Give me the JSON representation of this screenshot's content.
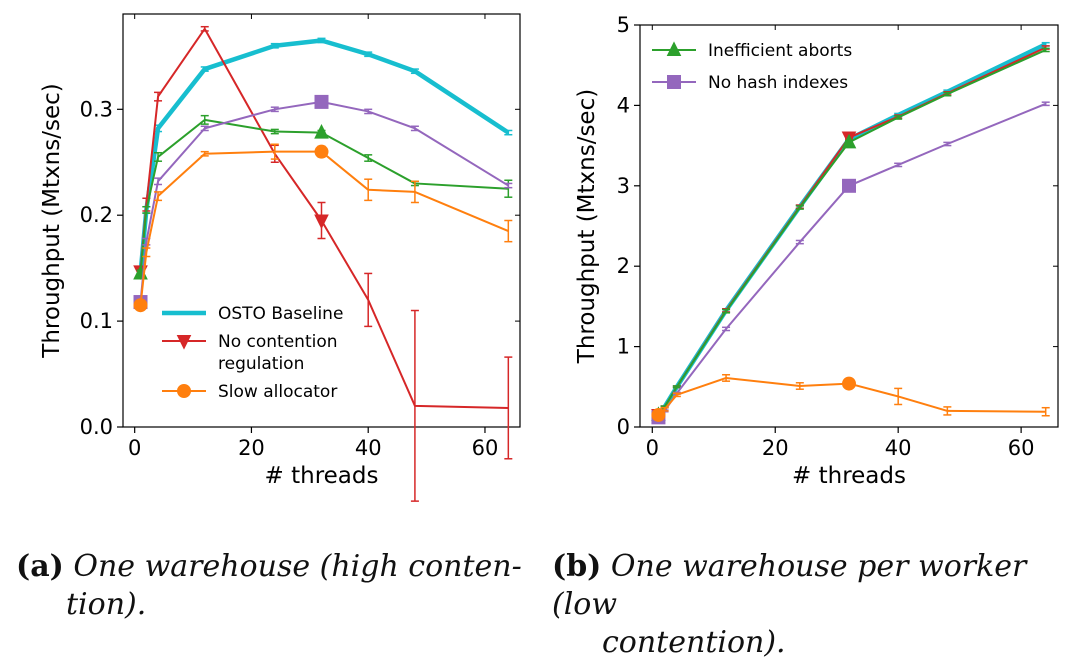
{
  "charts": [
    {
      "type": "line",
      "xlabel": "# threads",
      "ylabel": "Throughput (Mtxns/sec)",
      "xlim": [
        -2,
        66
      ],
      "ylim": [
        0,
        0.39
      ],
      "xticks": [
        "0",
        "20",
        "40",
        "60"
      ],
      "xtick_values": [
        0,
        20,
        40,
        60
      ],
      "yticks": [
        "0.0",
        "0.1",
        "0.2",
        "0.3"
      ],
      "ytick_values": [
        0,
        0.1,
        0.2,
        0.3
      ],
      "legend": [
        "OSTO Baseline",
        "No contention regulation",
        "Slow allocator"
      ],
      "legend_display": [
        [
          "OSTO Baseline"
        ],
        [
          "No contention",
          "regulation"
        ],
        [
          "Slow allocator"
        ]
      ],
      "series": [
        {
          "name": "OSTO Baseline",
          "color": "#17becf",
          "marker": "none",
          "x": [
            1,
            2,
            4,
            12,
            24,
            32,
            40,
            48,
            64
          ],
          "y": [
            0.145,
            0.205,
            0.282,
            0.338,
            0.36,
            0.365,
            0.352,
            0.336,
            0.278
          ],
          "err": [
            0.003,
            0.003,
            0.003,
            0.002,
            0.002,
            0.002,
            0.002,
            0.002,
            0.002
          ]
        },
        {
          "name": "No contention regulation",
          "color": "#d62728",
          "marker": "triangle_down",
          "x": [
            1,
            2,
            4,
            12,
            24,
            32,
            40,
            48,
            64
          ],
          "y": [
            0.147,
            0.21,
            0.312,
            0.376,
            0.258,
            0.195,
            0.12,
            0.02,
            0.018
          ],
          "err": [
            0.004,
            0.006,
            0.004,
            0.002,
            0.008,
            0.017,
            0.025,
            0.09,
            0.048
          ],
          "marker_index": [
            0,
            5
          ]
        },
        {
          "name": "Inefficient aborts",
          "color": "#2ca02c",
          "marker": "triangle_up",
          "x": [
            1,
            2,
            4,
            12,
            24,
            32,
            40,
            48,
            64
          ],
          "y": [
            0.145,
            0.205,
            0.255,
            0.29,
            0.279,
            0.278,
            0.254,
            0.23,
            0.225
          ],
          "err": [
            0.003,
            0.003,
            0.004,
            0.004,
            0.002,
            0.002,
            0.003,
            0.002,
            0.008
          ],
          "marker_index": [
            0,
            5
          ]
        },
        {
          "name": "No hash indexes",
          "color": "#9467bd",
          "marker": "square",
          "x": [
            1,
            2,
            4,
            12,
            24,
            32,
            40,
            48,
            64
          ],
          "y": [
            0.118,
            0.175,
            0.232,
            0.282,
            0.3,
            0.307,
            0.298,
            0.282,
            0.228
          ],
          "err": [
            0.003,
            0.003,
            0.003,
            0.002,
            0.002,
            0.002,
            0.002,
            0.002,
            0.002
          ],
          "marker_index": [
            0,
            5
          ]
        },
        {
          "name": "Slow allocator",
          "color": "#ff7f0e",
          "marker": "circle",
          "x": [
            1,
            2,
            4,
            12,
            24,
            32,
            40,
            48,
            64
          ],
          "y": [
            0.115,
            0.165,
            0.218,
            0.258,
            0.26,
            0.26,
            0.224,
            0.222,
            0.185
          ],
          "err": [
            0.003,
            0.004,
            0.004,
            0.002,
            0.007,
            0.005,
            0.01,
            0.01,
            0.01
          ],
          "marker_index": [
            0,
            5
          ]
        }
      ]
    },
    {
      "type": "line",
      "xlabel": "# threads",
      "ylabel": "Throughput (Mtxns/sec)",
      "xlim": [
        -2,
        66
      ],
      "ylim": [
        0,
        5
      ],
      "xticks": [
        "0",
        "20",
        "40",
        "60"
      ],
      "xtick_values": [
        0,
        20,
        40,
        60
      ],
      "yticks": [
        "0",
        "1",
        "2",
        "3",
        "4",
        "5"
      ],
      "ytick_values": [
        0,
        1,
        2,
        3,
        4,
        5
      ],
      "legend": [
        "Inefficient aborts",
        "No hash indexes"
      ],
      "legend_display": [
        [
          "Inefficient aborts"
        ],
        [
          "No hash indexes"
        ]
      ],
      "series": [
        {
          "name": "OSTO Baseline",
          "color": "#17becf",
          "marker": "none",
          "x": [
            1,
            2,
            4,
            12,
            24,
            32,
            40,
            48,
            64
          ],
          "y": [
            0.15,
            0.25,
            0.5,
            1.45,
            2.74,
            3.58,
            3.88,
            4.17,
            4.76
          ],
          "err": [
            0.01,
            0.01,
            0.01,
            0.02,
            0.02,
            0.02,
            0.02,
            0.02,
            0.02
          ]
        },
        {
          "name": "No contention regulation",
          "color": "#d62728",
          "marker": "triangle_down",
          "x": [
            1,
            2,
            4,
            12,
            24,
            32,
            40,
            48,
            64
          ],
          "y": [
            0.15,
            0.25,
            0.5,
            1.45,
            2.74,
            3.6,
            3.86,
            4.15,
            4.72
          ],
          "err": [
            0.01,
            0.01,
            0.01,
            0.02,
            0.02,
            0.02,
            0.02,
            0.02,
            0.02
          ],
          "marker_index": [
            0,
            5
          ]
        },
        {
          "name": "Inefficient aborts",
          "color": "#2ca02c",
          "marker": "triangle_up",
          "x": [
            1,
            2,
            4,
            12,
            24,
            32,
            40,
            48,
            64
          ],
          "y": [
            0.15,
            0.25,
            0.5,
            1.44,
            2.73,
            3.54,
            3.85,
            4.14,
            4.69
          ],
          "err": [
            0.01,
            0.01,
            0.01,
            0.02,
            0.02,
            0.02,
            0.02,
            0.02,
            0.02
          ],
          "marker_index": [
            0,
            5
          ]
        },
        {
          "name": "No hash indexes",
          "color": "#9467bd",
          "marker": "square",
          "x": [
            1,
            2,
            4,
            12,
            24,
            32,
            40,
            48,
            64
          ],
          "y": [
            0.12,
            0.2,
            0.42,
            1.22,
            2.3,
            3.0,
            3.26,
            3.52,
            4.02
          ],
          "err": [
            0.01,
            0.01,
            0.01,
            0.02,
            0.02,
            0.02,
            0.02,
            0.02,
            0.02
          ],
          "marker_index": [
            0,
            5
          ]
        },
        {
          "name": "Slow allocator",
          "color": "#ff7f0e",
          "marker": "circle",
          "x": [
            1,
            2,
            4,
            12,
            24,
            32,
            40,
            48,
            64
          ],
          "y": [
            0.15,
            0.22,
            0.4,
            0.61,
            0.51,
            0.54,
            0.38,
            0.2,
            0.19
          ],
          "err": [
            0.01,
            0.02,
            0.02,
            0.04,
            0.04,
            0.03,
            0.1,
            0.05,
            0.05
          ],
          "marker_index": [
            0,
            5
          ]
        }
      ]
    }
  ],
  "chart_data": [
    {
      "type": "line",
      "subplot": "(a)",
      "xlabel": "# threads",
      "ylabel": "Throughput (Mtxns/sec)",
      "legend": [
        "OSTO Baseline",
        "No contention regulation",
        "Slow allocator"
      ],
      "x": [
        1,
        2,
        4,
        12,
        24,
        32,
        40,
        48,
        64
      ],
      "series": [
        {
          "name": "OSTO Baseline",
          "values": [
            0.145,
            0.205,
            0.282,
            0.338,
            0.36,
            0.365,
            0.352,
            0.336,
            0.278
          ]
        },
        {
          "name": "No contention regulation",
          "values": [
            0.147,
            0.21,
            0.312,
            0.376,
            0.258,
            0.195,
            0.12,
            0.02,
            0.018
          ]
        },
        {
          "name": "Inefficient aborts",
          "values": [
            0.145,
            0.205,
            0.255,
            0.29,
            0.279,
            0.278,
            0.254,
            0.23,
            0.225
          ]
        },
        {
          "name": "No hash indexes",
          "values": [
            0.118,
            0.175,
            0.232,
            0.282,
            0.3,
            0.307,
            0.298,
            0.282,
            0.228
          ]
        },
        {
          "name": "Slow allocator",
          "values": [
            0.115,
            0.165,
            0.218,
            0.258,
            0.26,
            0.26,
            0.224,
            0.222,
            0.185
          ]
        }
      ]
    },
    {
      "type": "line",
      "subplot": "(b)",
      "xlabel": "# threads",
      "ylabel": "Throughput (Mtxns/sec)",
      "legend": [
        "Inefficient aborts",
        "No hash indexes"
      ],
      "x": [
        1,
        2,
        4,
        12,
        24,
        32,
        40,
        48,
        64
      ],
      "series": [
        {
          "name": "OSTO Baseline",
          "values": [
            0.15,
            0.25,
            0.5,
            1.45,
            2.74,
            3.58,
            3.88,
            4.17,
            4.76
          ]
        },
        {
          "name": "No contention regulation",
          "values": [
            0.15,
            0.25,
            0.5,
            1.45,
            2.74,
            3.6,
            3.86,
            4.15,
            4.72
          ]
        },
        {
          "name": "Inefficient aborts",
          "values": [
            0.15,
            0.25,
            0.5,
            1.44,
            2.73,
            3.54,
            3.85,
            4.14,
            4.69
          ]
        },
        {
          "name": "No hash indexes",
          "values": [
            0.12,
            0.2,
            0.42,
            1.22,
            2.3,
            3.0,
            3.26,
            3.52,
            4.02
          ]
        },
        {
          "name": "Slow allocator",
          "values": [
            0.15,
            0.22,
            0.4,
            0.61,
            0.51,
            0.54,
            0.38,
            0.2,
            0.19
          ]
        }
      ]
    }
  ],
  "captions": {
    "a_label": "(a)",
    "a_text_line1": "One warehouse (high conten-",
    "a_text_line2": "tion).",
    "b_label": "(b)",
    "b_text_line1": "One warehouse per worker (low",
    "b_text_line2": "contention)."
  }
}
